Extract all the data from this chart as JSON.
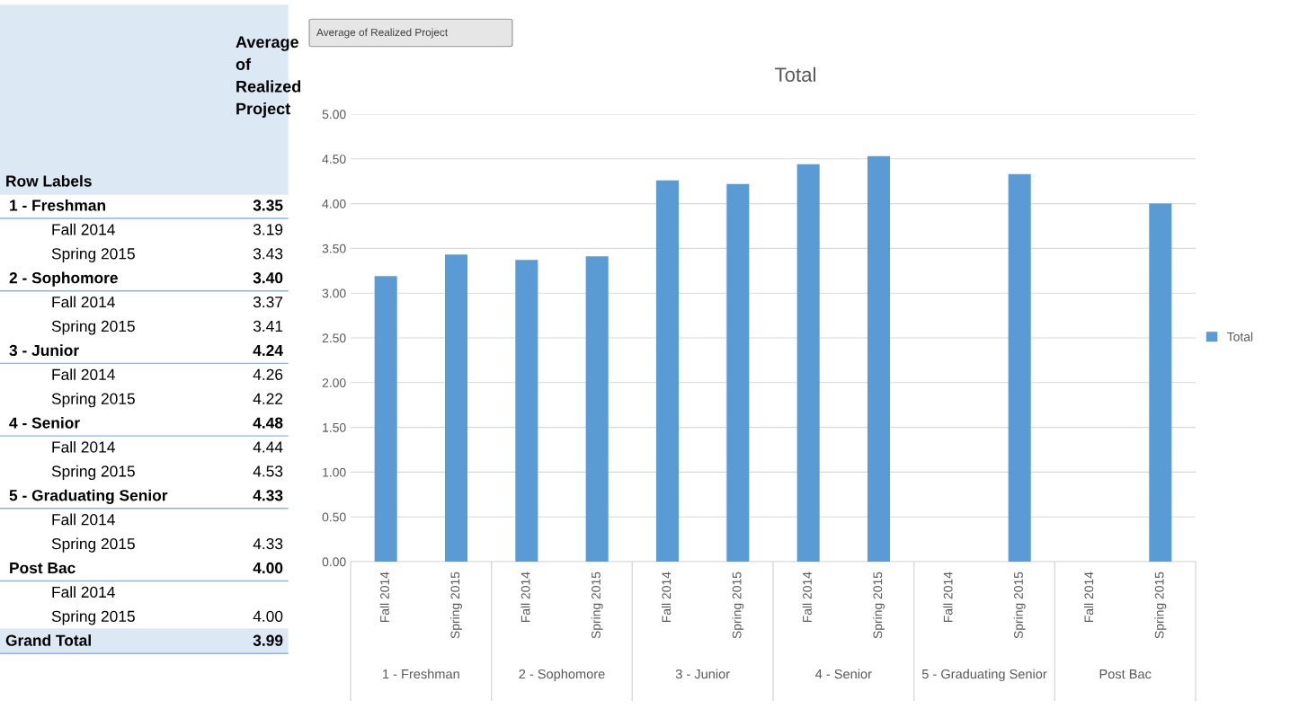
{
  "chart_data": {
    "type": "bar",
    "title": "Total",
    "categories": [
      "Fall 2014",
      "Spring 2015",
      "Fall 2014",
      "Spring 2015",
      "Fall 2014",
      "Spring 2015",
      "Fall 2014",
      "Spring 2015",
      "Fall 2014",
      "Spring 2015",
      "Fall 2014",
      "Spring 2015"
    ],
    "series": [
      {
        "name": "Total",
        "color": "#5b9bd5",
        "values": [
          3.19,
          3.43,
          3.37,
          3.41,
          4.26,
          4.22,
          4.44,
          4.53,
          null,
          4.33,
          null,
          4.0
        ]
      }
    ],
    "ylim": [
      0,
      5
    ],
    "yticks": [
      {
        "value": 0,
        "label": "0.00"
      },
      {
        "value": 0.5,
        "label": "0.50"
      },
      {
        "value": 1,
        "label": "1.00"
      },
      {
        "value": 1.5,
        "label": "1.50"
      },
      {
        "value": 2,
        "label": "2.00"
      },
      {
        "value": 2.5,
        "label": "2.50"
      },
      {
        "value": 3,
        "label": "3.00"
      },
      {
        "value": 3.5,
        "label": "3.50"
      },
      {
        "value": 4,
        "label": "4.00"
      },
      {
        "value": 4.5,
        "label": "4.50"
      },
      {
        "value": 5,
        "label": "5.00"
      }
    ],
    "grid": "y",
    "legend": "right",
    "annotations": [
      "Average of Realized Project",
      "Row Labels",
      "Average of Realized Project",
      "1 - Freshman",
      "3.35",
      "2 - Sophomore",
      "3.40",
      "3 - Junior",
      "4.24",
      "4 - Senior",
      "4.48",
      "5 - Graduating Senior",
      "4.33",
      "Post Bac",
      "4.00",
      "Grand Total",
      "3.99",
      "3.19",
      "3.43",
      "3.37",
      "3.41",
      "4.26",
      "4.22",
      "4.44",
      "4.53",
      "4.33",
      "4.00"
    ]
  }
}
